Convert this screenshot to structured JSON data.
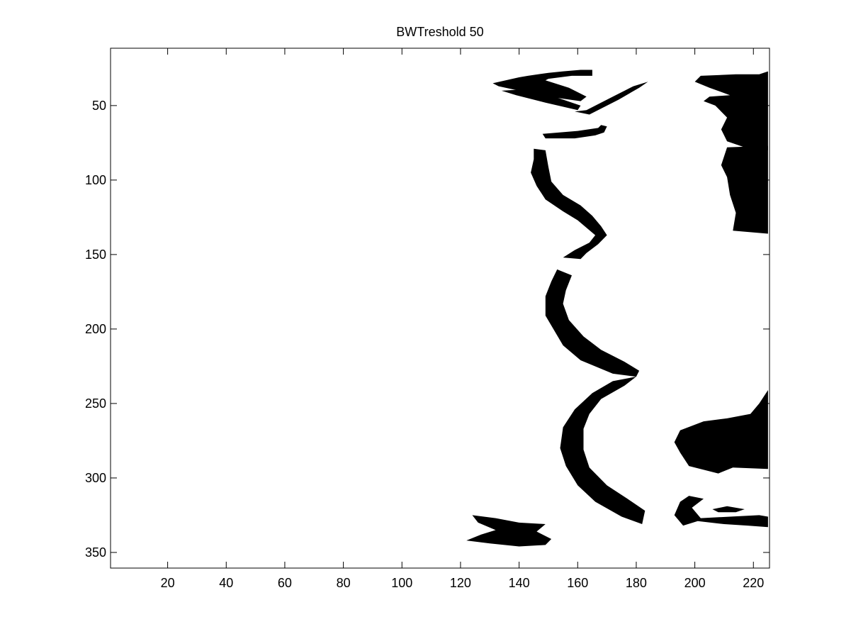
{
  "chart_data": {
    "type": "image",
    "title": "BWTreshold 50",
    "xlabel": "",
    "ylabel": "",
    "xlim": [
      0.5,
      225.5
    ],
    "ylim": [
      360.5,
      11.5
    ],
    "y_reversed": true,
    "xticks": [
      20,
      40,
      60,
      80,
      100,
      120,
      140,
      160,
      180,
      200,
      220
    ],
    "yticks": [
      50,
      100,
      150,
      200,
      250,
      300,
      350
    ],
    "xtick_labels": [
      "20",
      "40",
      "60",
      "80",
      "100",
      "120",
      "140",
      "160",
      "180",
      "200",
      "220"
    ],
    "ytick_labels": [
      "50",
      "100",
      "150",
      "200",
      "250",
      "300",
      "350"
    ],
    "colormap": {
      "foreground": "#000000",
      "background": "#ffffff"
    },
    "regions": [
      {
        "name": "top-left-blob",
        "points": [
          [
            131,
            35
          ],
          [
            140,
            31
          ],
          [
            143,
            30
          ],
          [
            150,
            28
          ],
          [
            155,
            27
          ],
          [
            161,
            26
          ],
          [
            165,
            26
          ],
          [
            165,
            30
          ],
          [
            158,
            30
          ],
          [
            150,
            32
          ],
          [
            149,
            33
          ],
          [
            157,
            38
          ],
          [
            163,
            44
          ],
          [
            161,
            47
          ],
          [
            150,
            44
          ],
          [
            140,
            40
          ],
          [
            133,
            37
          ]
        ]
      },
      {
        "name": "top-wedge",
        "points": [
          [
            143,
            39
          ],
          [
            152,
            44
          ],
          [
            161,
            50
          ],
          [
            160,
            53
          ],
          [
            149,
            48
          ],
          [
            139,
            43
          ],
          [
            134,
            40
          ]
        ]
      },
      {
        "name": "top-right-arm",
        "points": [
          [
            163,
            53
          ],
          [
            172,
            44
          ],
          [
            179,
            37
          ],
          [
            184,
            34
          ],
          [
            181,
            38
          ],
          [
            174,
            46
          ],
          [
            164,
            56
          ],
          [
            159,
            54
          ]
        ]
      },
      {
        "name": "small-spots",
        "points": [
          [
            168,
            63
          ],
          [
            170,
            64
          ],
          [
            169,
            68
          ],
          [
            166,
            70
          ],
          [
            159,
            72
          ],
          [
            149,
            72
          ],
          [
            148,
            69
          ],
          [
            160,
            67
          ],
          [
            167,
            65
          ]
        ]
      },
      {
        "name": "upper-s-curve",
        "points": [
          [
            145,
            79
          ],
          [
            149,
            80
          ],
          [
            150,
            91
          ],
          [
            151,
            101
          ],
          [
            155,
            110
          ],
          [
            161,
            117
          ],
          [
            165,
            124
          ],
          [
            168,
            131
          ],
          [
            170,
            137
          ],
          [
            167,
            143
          ],
          [
            163,
            149
          ],
          [
            161,
            153
          ],
          [
            155,
            152
          ],
          [
            159,
            147
          ],
          [
            164,
            142
          ],
          [
            166,
            137
          ],
          [
            160,
            127
          ],
          [
            155,
            121
          ],
          [
            149,
            113
          ],
          [
            146,
            104
          ],
          [
            144,
            95
          ],
          [
            145,
            86
          ]
        ]
      },
      {
        "name": "middle-curve",
        "points": [
          [
            153,
            160
          ],
          [
            158,
            164
          ],
          [
            156,
            174
          ],
          [
            155,
            183
          ],
          [
            157,
            194
          ],
          [
            162,
            205
          ],
          [
            168,
            214
          ],
          [
            176,
            222
          ],
          [
            181,
            228
          ],
          [
            180,
            232
          ],
          [
            172,
            230
          ],
          [
            161,
            221
          ],
          [
            155,
            211
          ],
          [
            152,
            201
          ],
          [
            149,
            191
          ],
          [
            149,
            178
          ],
          [
            151,
            168
          ]
        ]
      },
      {
        "name": "lower-curve",
        "points": [
          [
            180,
            232
          ],
          [
            176,
            238
          ],
          [
            168,
            247
          ],
          [
            164,
            257
          ],
          [
            162,
            267
          ],
          [
            162,
            281
          ],
          [
            164,
            293
          ],
          [
            170,
            305
          ],
          [
            177,
            314
          ],
          [
            183,
            322
          ],
          [
            182,
            331
          ],
          [
            175,
            326
          ],
          [
            166,
            316
          ],
          [
            160,
            305
          ],
          [
            156,
            292
          ],
          [
            154,
            280
          ],
          [
            155,
            266
          ],
          [
            159,
            254
          ],
          [
            165,
            243
          ],
          [
            172,
            235
          ]
        ]
      },
      {
        "name": "bottom-blob",
        "points": [
          [
            124,
            325
          ],
          [
            132,
            327
          ],
          [
            140,
            330
          ],
          [
            149,
            331
          ],
          [
            146,
            336
          ],
          [
            151,
            341
          ],
          [
            149,
            345
          ],
          [
            140,
            346
          ],
          [
            130,
            344
          ],
          [
            122,
            342
          ],
          [
            127,
            338
          ],
          [
            132,
            335
          ],
          [
            126,
            330
          ]
        ]
      },
      {
        "name": "right-upper-mass",
        "points": [
          [
            202,
            30
          ],
          [
            214,
            29
          ],
          [
            222,
            29
          ],
          [
            225,
            27
          ],
          [
            225,
            80
          ],
          [
            217,
            78
          ],
          [
            211,
            74
          ],
          [
            209,
            66
          ],
          [
            211,
            58
          ],
          [
            207,
            50
          ],
          [
            203,
            47
          ],
          [
            205,
            44
          ],
          [
            212,
            43
          ],
          [
            205,
            38
          ],
          [
            200,
            34
          ]
        ]
      },
      {
        "name": "right-mid-mass",
        "points": [
          [
            211,
            78
          ],
          [
            225,
            77
          ],
          [
            225,
            136
          ],
          [
            213,
            134
          ],
          [
            214,
            122
          ],
          [
            212,
            110
          ],
          [
            211,
            98
          ],
          [
            209,
            90
          ]
        ]
      },
      {
        "name": "right-lower-mass",
        "points": [
          [
            211,
            260
          ],
          [
            219,
            257
          ],
          [
            222,
            250
          ],
          [
            225,
            241
          ],
          [
            225,
            294
          ],
          [
            213,
            293
          ],
          [
            208,
            297
          ],
          [
            198,
            292
          ],
          [
            195,
            283
          ],
          [
            193,
            276
          ],
          [
            195,
            268
          ],
          [
            203,
            262
          ]
        ]
      },
      {
        "name": "right-bottom-strip",
        "points": [
          [
            198,
            312
          ],
          [
            203,
            314
          ],
          [
            199,
            320
          ],
          [
            202,
            327
          ],
          [
            212,
            326
          ],
          [
            222,
            325
          ],
          [
            225,
            326
          ],
          [
            225,
            333
          ],
          [
            218,
            332
          ],
          [
            210,
            331
          ],
          [
            201,
            329
          ],
          [
            196,
            332
          ],
          [
            193,
            325
          ],
          [
            195,
            316
          ]
        ]
      },
      {
        "name": "right-bottom-hook",
        "points": [
          [
            206,
            321
          ],
          [
            211,
            319
          ],
          [
            217,
            321
          ],
          [
            214,
            323
          ],
          [
            208,
            323
          ]
        ]
      }
    ]
  }
}
